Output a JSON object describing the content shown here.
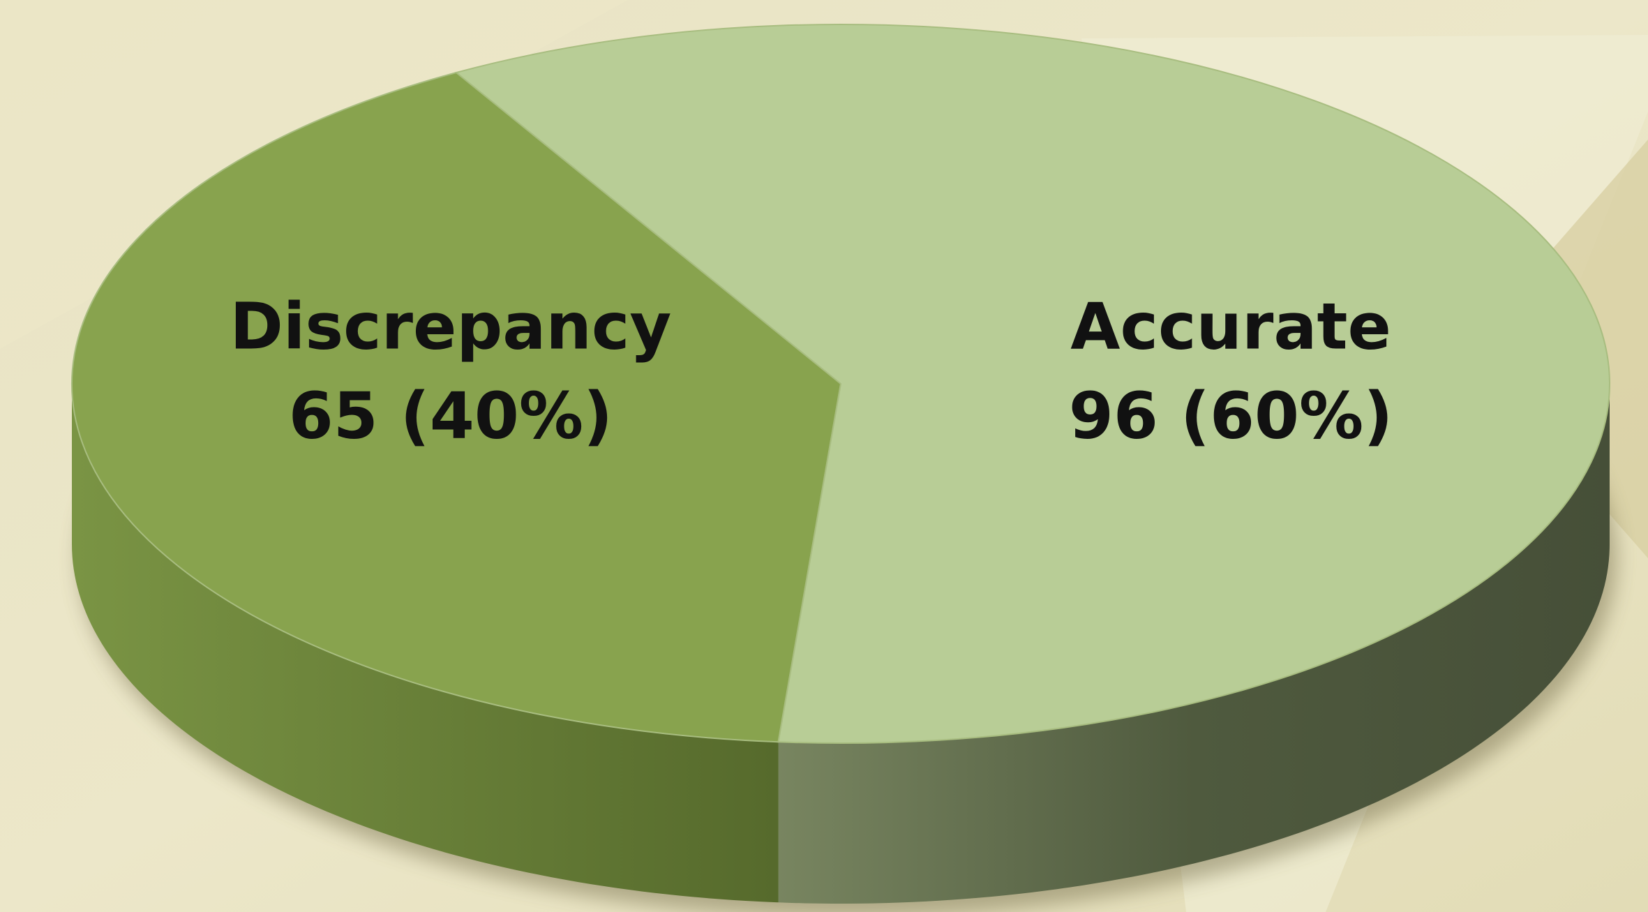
{
  "chart_data": {
    "type": "pie3d",
    "categories": [
      "Discrepancy",
      "Accurate"
    ],
    "values": [
      65,
      96
    ],
    "value_labels": [
      "65 (40%)",
      "96 (60%)"
    ],
    "colors": [
      "#88a34e",
      "#b8cd96"
    ]
  }
}
